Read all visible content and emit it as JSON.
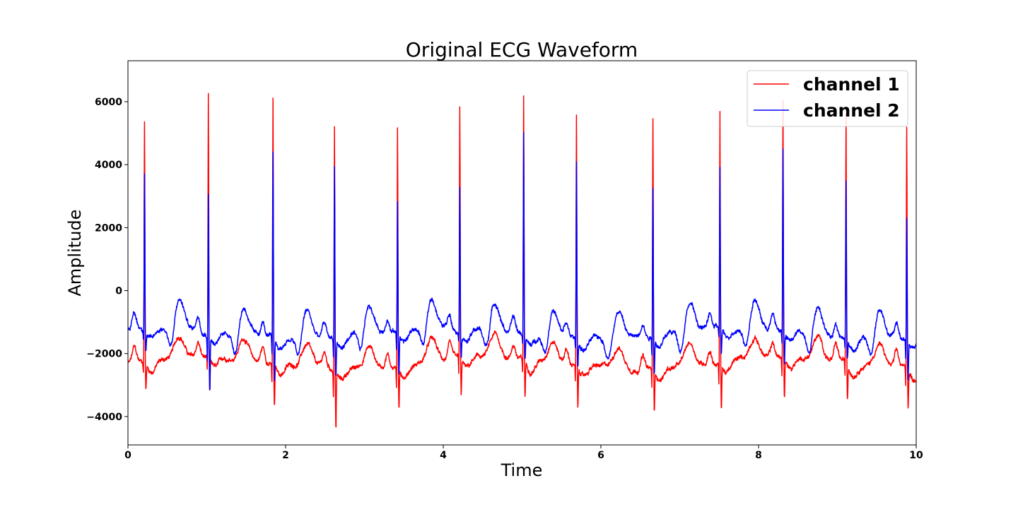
{
  "chart_data": {
    "type": "line",
    "title": "Original ECG Waveform",
    "xlabel": "Time",
    "ylabel": "Amplitude",
    "xlim": [
      0,
      10
    ],
    "ylim": [
      -4900,
      7300
    ],
    "x_ticks": [
      0,
      2,
      4,
      6,
      8,
      10
    ],
    "x_tick_labels": [
      "0",
      "2",
      "4",
      "6",
      "8",
      "10"
    ],
    "y_ticks": [
      -4000,
      -2000,
      0,
      2000,
      4000,
      6000
    ],
    "y_tick_labels": [
      "−4000",
      "−2000",
      "0",
      "2000",
      "4000",
      "6000"
    ],
    "grid": false,
    "legend_position": "upper right",
    "series": [
      {
        "name": "channel 1",
        "color": "#ff0000",
        "baseline": -2300,
        "r_peaks": [
          {
            "t": 0.21,
            "amp": 5400,
            "min": -3100
          },
          {
            "t": 1.02,
            "amp": 6050,
            "min": -3400
          },
          {
            "t": 1.84,
            "amp": 6150,
            "min": -3600
          },
          {
            "t": 2.62,
            "amp": 5500,
            "min": -4100
          },
          {
            "t": 3.42,
            "amp": 5250,
            "min": -3600
          },
          {
            "t": 4.21,
            "amp": 5680,
            "min": -3500
          },
          {
            "t": 5.02,
            "amp": 6070,
            "min": -3400
          },
          {
            "t": 5.69,
            "amp": 5600,
            "min": -3600
          },
          {
            "t": 6.66,
            "amp": 5680,
            "min": -3650
          },
          {
            "t": 7.51,
            "amp": 5720,
            "min": -3700
          },
          {
            "t": 8.31,
            "amp": 5950,
            "min": -3500
          },
          {
            "t": 9.11,
            "amp": 5650,
            "min": -3400
          },
          {
            "t": 9.88,
            "amp": 5400,
            "min": -3450
          }
        ]
      },
      {
        "name": "channel 2",
        "color": "#0000ff",
        "baseline": -1350,
        "r_peaks": [
          {
            "t": 0.21,
            "amp": 3700,
            "min": -1900
          },
          {
            "t": 1.02,
            "amp": 3200,
            "min": -3000
          },
          {
            "t": 1.84,
            "amp": 4550,
            "min": -2700
          },
          {
            "t": 2.62,
            "amp": 4200,
            "min": -2500
          },
          {
            "t": 3.42,
            "amp": 2850,
            "min": -2600
          },
          {
            "t": 4.21,
            "amp": 3300,
            "min": -2000
          },
          {
            "t": 5.02,
            "amp": 5150,
            "min": -2000
          },
          {
            "t": 5.69,
            "amp": 4280,
            "min": -2100
          },
          {
            "t": 6.66,
            "amp": 3500,
            "min": -2400
          },
          {
            "t": 7.51,
            "amp": 3800,
            "min": -2100
          },
          {
            "t": 8.31,
            "amp": 4500,
            "min": -2300
          },
          {
            "t": 9.11,
            "amp": 3700,
            "min": -1900
          },
          {
            "t": 9.88,
            "amp": 2550,
            "min": -2600
          }
        ]
      }
    ]
  }
}
